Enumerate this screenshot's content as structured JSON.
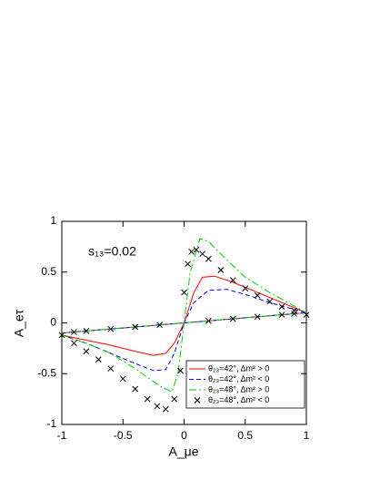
{
  "chart_data": {
    "type": "line",
    "annotation": "s₁₃=0.02",
    "x_label": "A_μe",
    "y_label": "A_eτ",
    "xlim": [
      -1,
      1
    ],
    "ylim": [
      -1,
      1
    ],
    "xticks": [
      -1,
      -0.5,
      0,
      0.5,
      1
    ],
    "yticks": [
      -1,
      -0.5,
      0,
      0.5,
      1
    ],
    "legend": "lower right",
    "series": [
      {
        "name": "θ₂₃=42°, Δm² > 0",
        "color": "#ff0000",
        "style": "solid",
        "x": [
          -1,
          -0.8,
          -0.6,
          -0.4,
          -0.25,
          -0.15,
          -0.08,
          0,
          0.08,
          0.15,
          0.25,
          0.4,
          0.6,
          0.8,
          1,
          0.5,
          0,
          -0.5,
          -1
        ],
        "values": [
          -0.12,
          -0.17,
          -0.22,
          -0.28,
          -0.32,
          -0.3,
          -0.2,
          0,
          0.3,
          0.45,
          0.46,
          0.4,
          0.3,
          0.2,
          0.1,
          0.05,
          0,
          -0.05,
          -0.1
        ]
      },
      {
        "name": "θ₂₃=42°, Δm² < 0",
        "color": "#0000ff",
        "style": "dashed",
        "x": [
          -1,
          -0.8,
          -0.6,
          -0.4,
          -0.25,
          -0.15,
          -0.08,
          0,
          0.08,
          0.2,
          0.35,
          0.5,
          0.7,
          1,
          0.5,
          0,
          -0.5,
          -1
        ],
        "values": [
          -0.12,
          -0.2,
          -0.3,
          -0.4,
          -0.47,
          -0.46,
          -0.3,
          0,
          0.2,
          0.32,
          0.33,
          0.28,
          0.2,
          0.1,
          0.05,
          0,
          -0.05,
          -0.1
        ]
      },
      {
        "name": "θ₂₃=48°, Δm² > 0",
        "color": "#00cc00",
        "style": "dashdot",
        "x": [
          -1,
          -0.8,
          -0.6,
          -0.4,
          -0.2,
          -0.1,
          -0.05,
          0,
          0.05,
          0.13,
          0.2,
          0.35,
          0.5,
          0.7,
          1,
          0.5,
          0,
          -0.5,
          -1
        ],
        "values": [
          -0.12,
          -0.2,
          -0.3,
          -0.45,
          -0.62,
          -0.68,
          -0.5,
          0,
          0.5,
          0.83,
          0.8,
          0.62,
          0.45,
          0.3,
          0.1,
          0.05,
          0,
          -0.05,
          -0.1
        ]
      },
      {
        "name": "θ₂₃=48°, Δm² < 0",
        "color": "#000000",
        "style": "x",
        "x": [
          -1,
          -0.9,
          -0.8,
          -0.7,
          -0.6,
          -0.5,
          -0.4,
          -0.3,
          -0.22,
          -0.15,
          -0.08,
          -0.03,
          0,
          0.03,
          0.06,
          0.1,
          0.15,
          0.2,
          0.3,
          0.4,
          0.5,
          0.6,
          0.7,
          0.8,
          0.9,
          1,
          0.9,
          0.8,
          0.6,
          0.4,
          0.2,
          -0.2,
          -0.4,
          -0.6,
          -0.8,
          -0.9
        ],
        "values": [
          -0.12,
          -0.2,
          -0.28,
          -0.36,
          -0.45,
          -0.55,
          -0.65,
          -0.75,
          -0.82,
          -0.85,
          -0.75,
          -0.47,
          0.3,
          0.58,
          0.7,
          0.72,
          0.68,
          0.63,
          0.52,
          0.42,
          0.34,
          0.27,
          0.21,
          0.16,
          0.12,
          0.08,
          0.09,
          0.08,
          0.06,
          0.04,
          0.02,
          -0.02,
          -0.04,
          -0.06,
          -0.08,
          -0.09
        ]
      }
    ]
  }
}
